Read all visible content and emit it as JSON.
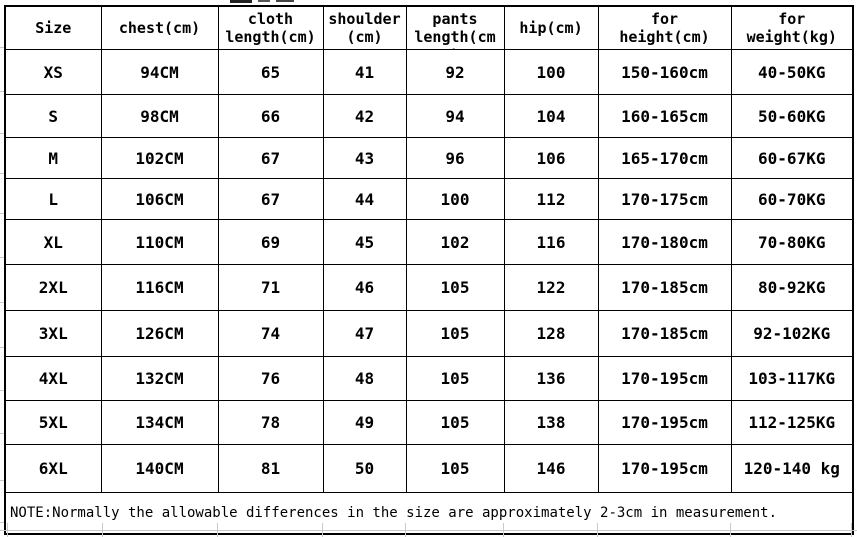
{
  "page": {
    "background": "#ffffff",
    "border_color": "#000000",
    "text_color": "#000000",
    "gridline_color": "#c9c9c9"
  },
  "table": {
    "columns": [
      {
        "key": "size",
        "lines": [
          "Size"
        ]
      },
      {
        "key": "chest",
        "lines": [
          "chest(cm)"
        ]
      },
      {
        "key": "cloth-length",
        "lines": [
          "cloth",
          "length(cm)"
        ]
      },
      {
        "key": "shoulder",
        "lines": [
          "shoulder",
          "(cm)"
        ]
      },
      {
        "key": "pants-length",
        "lines": [
          "pants",
          "length(cm",
          ")"
        ]
      },
      {
        "key": "hip",
        "lines": [
          "hip(cm)"
        ]
      },
      {
        "key": "for-height",
        "lines": [
          "for",
          "height(cm)"
        ]
      },
      {
        "key": "for-weight",
        "lines": [
          "for",
          "weight(kg)"
        ]
      }
    ],
    "rows": [
      {
        "cells": [
          "XS",
          "94CM",
          "65",
          "41",
          "92",
          "100",
          "150-160cm",
          "40-50KG"
        ]
      },
      {
        "cells": [
          "S",
          "98CM",
          "66",
          "42",
          "94",
          "104",
          "160-165cm",
          "50-60KG"
        ]
      },
      {
        "cells": [
          "M",
          "102CM",
          "67",
          "43",
          "96",
          "106",
          "165-170cm",
          "60-67KG"
        ]
      },
      {
        "cells": [
          "L",
          "106CM",
          "67",
          "44",
          "100",
          "112",
          "170-175cm",
          "60-70KG"
        ]
      },
      {
        "cells": [
          "XL",
          "110CM",
          "69",
          "45",
          "102",
          "116",
          "170-180cm",
          "70-80KG"
        ]
      },
      {
        "cells": [
          "2XL",
          "116CM",
          "71",
          "46",
          "105",
          "122",
          "170-185cm",
          "80-92KG"
        ]
      },
      {
        "cells": [
          "3XL",
          "126CM",
          "74",
          "47",
          "105",
          "128",
          "170-185cm",
          "92-102KG"
        ]
      },
      {
        "cells": [
          "4XL",
          "132CM",
          "76",
          "48",
          "105",
          "136",
          "170-195cm",
          "103-117KG"
        ]
      },
      {
        "cells": [
          "5XL",
          "134CM",
          "78",
          "49",
          "105",
          "138",
          "170-195cm",
          "112-125KG"
        ]
      },
      {
        "cells": [
          "6XL",
          "140CM",
          "81",
          "50",
          "105",
          "146",
          "170-195cm",
          "120-140 kg"
        ]
      }
    ],
    "note": "NOTE:Normally the allowable differences in the size are approximately 2-3cm in measurement."
  }
}
